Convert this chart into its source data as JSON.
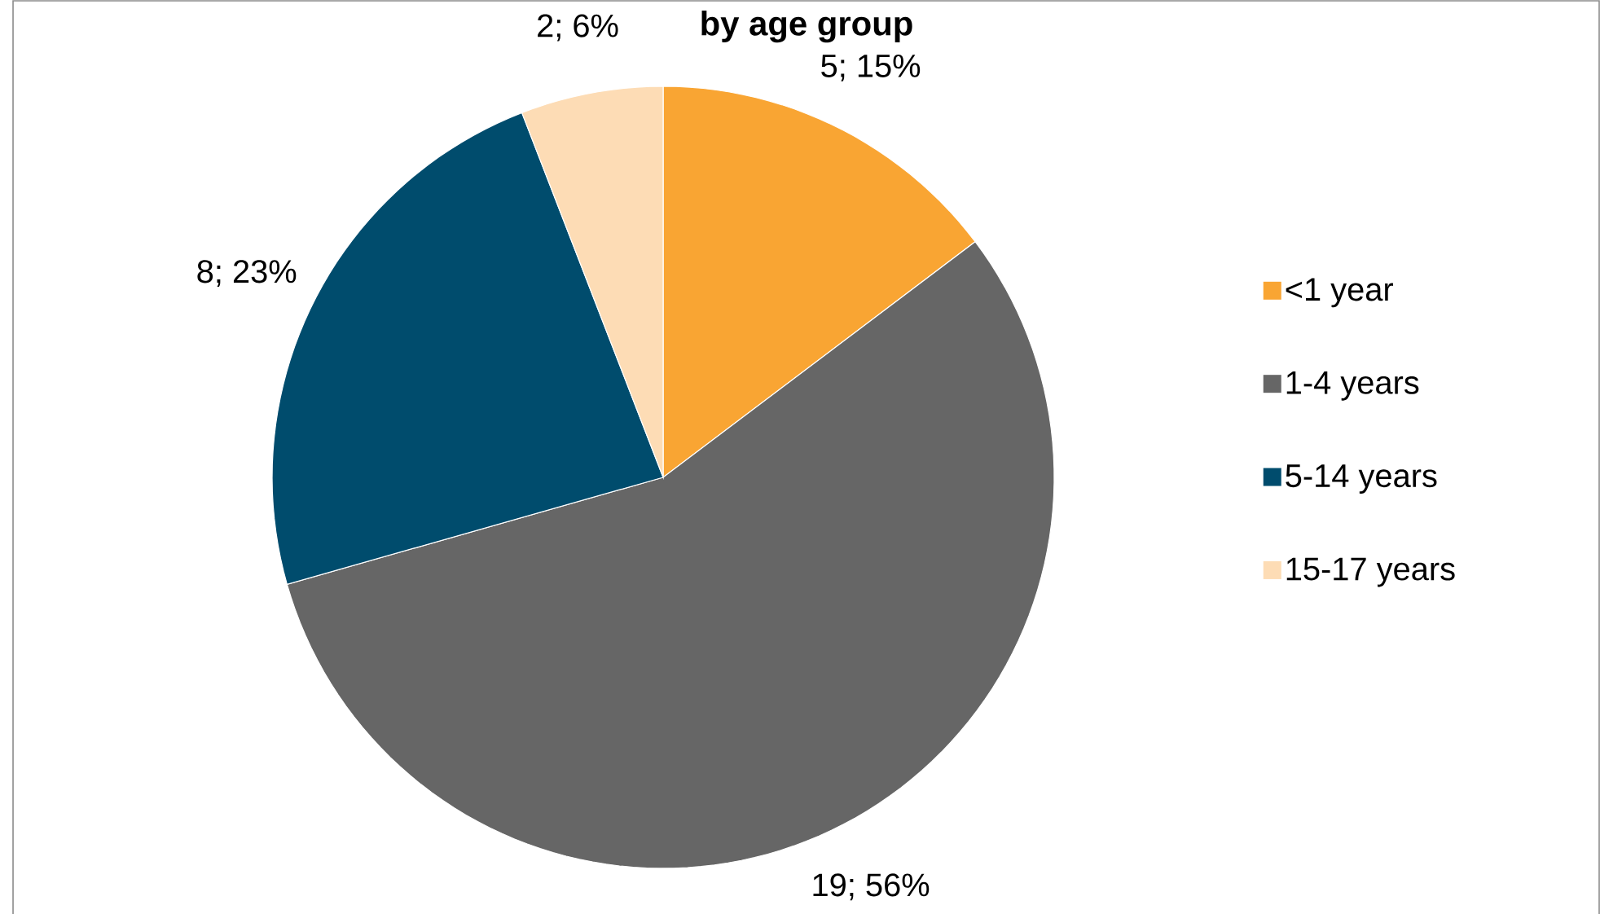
{
  "chart_data": {
    "type": "pie",
    "title": "by age group",
    "categories": [
      "<1 year",
      "1-4 years",
      "5-14 years",
      "15-17 years"
    ],
    "values": [
      5,
      19,
      8,
      2
    ],
    "colors": [
      "#f9a533",
      "#666666",
      "#004c6d",
      "#fddcb5"
    ],
    "value_labels": [
      "5; 15%",
      "19; 56%",
      "8; 23%",
      "2; 6%"
    ],
    "legend": "right"
  }
}
